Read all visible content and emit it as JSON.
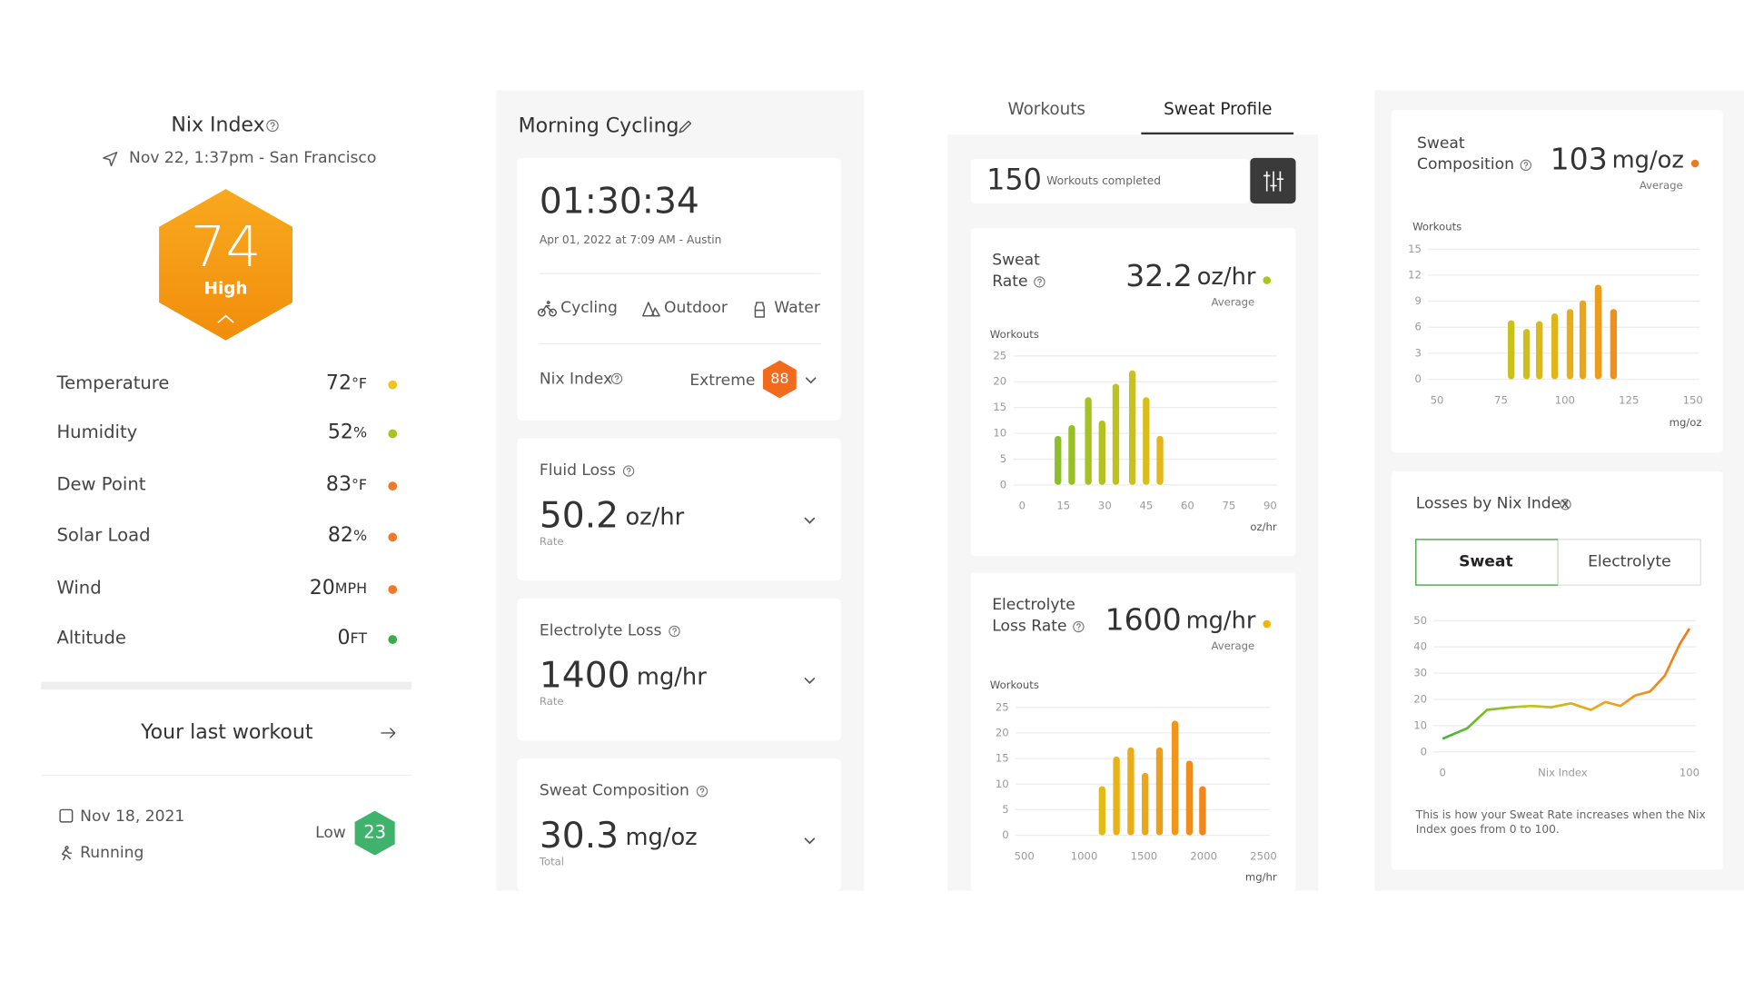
{
  "nix_panel": {
    "title": "Nix Index",
    "location": "Nov 22, 1:37pm - San Francisco",
    "index": "74",
    "level": "High",
    "conditions": [
      {
        "label": "Temperature",
        "value": "72",
        "unit": "°F",
        "dot": "#f2c31a"
      },
      {
        "label": "Humidity",
        "value": "52",
        "unit": "%",
        "dot": "#a9c41c"
      },
      {
        "label": "Dew Point",
        "value": "83",
        "unit": "°F",
        "dot": "#f07a2a"
      },
      {
        "label": "Solar Load",
        "value": "82",
        "unit": "%",
        "dot": "#f07a2a"
      },
      {
        "label": "Wind",
        "value": "20",
        "unit": "MPH",
        "dot": "#f07a2a"
      },
      {
        "label": "Altitude",
        "value": "0",
        "unit": "FT",
        "dot": "#3daa4e"
      }
    ],
    "last_workout": {
      "title": "Your last workout",
      "date": "Nov 18, 2021",
      "activity": "Running",
      "level": "Low",
      "index": "23"
    }
  },
  "workout_panel": {
    "title": "Morning Cycling",
    "duration": "01:30:34",
    "meta": "Apr 01, 2022 at 7:09 AM - Austin",
    "tags": [
      "Cycling",
      "Outdoor",
      "Water"
    ],
    "nix_label": "Nix Index",
    "nix_level": "Extreme",
    "nix_value": "88",
    "metrics": [
      {
        "label": "Fluid Loss",
        "value": "50.2",
        "unit": "oz/hr",
        "sub": "Rate"
      },
      {
        "label": "Electrolyte Loss",
        "value": "1400",
        "unit": "mg/hr",
        "sub": "Rate"
      },
      {
        "label": "Sweat Composition",
        "value": "30.3",
        "unit": "mg/oz",
        "sub": "Total"
      }
    ]
  },
  "profile_panel": {
    "tabs": [
      "Workouts",
      "Sweat Profile"
    ],
    "count": "150",
    "count_label": "Workouts completed",
    "cards": [
      {
        "label_lines": [
          "Sweat",
          "Rate"
        ],
        "value": "32.2",
        "unit": "oz/hr",
        "sub": "Average",
        "dot": "#a8c81a"
      },
      {
        "label_lines": [
          "Electrolyte",
          "Loss Rate"
        ],
        "value": "1600",
        "unit": "mg/hr",
        "sub": "Average",
        "dot": "#f5b400"
      }
    ]
  },
  "composition_panel": {
    "card": {
      "label_lines": [
        "Sweat",
        "Composition"
      ],
      "value": "103",
      "unit": "mg/oz",
      "sub": "Average",
      "dot": "#f07a1a"
    },
    "losses_title": "Losses by Nix Index",
    "toggle": [
      "Sweat",
      "Electrolyte"
    ],
    "note_lines": [
      "This is how your Sweat Rate increases when the Nix",
      "Index goes from 0 to 100."
    ]
  },
  "chart_data": [
    {
      "type": "bar",
      "y_label": "Workouts",
      "x_label": "oz/hr",
      "x": [
        13,
        18,
        24,
        29,
        34,
        40,
        45,
        50
      ],
      "values": [
        9.5,
        11.6,
        17,
        12.5,
        19.6,
        22.2,
        17,
        9.5
      ],
      "colors": [
        "#8cbf26",
        "#98c024",
        "#a6c222",
        "#b2c220",
        "#bec21e",
        "#cbc11c",
        "#d9bd1a",
        "#e4b718"
      ],
      "xlim": [
        0,
        90
      ],
      "xticks": [
        0,
        15,
        30,
        45,
        60,
        75,
        90
      ],
      "ylim": [
        0,
        25
      ],
      "yticks": [
        0,
        5,
        10,
        15,
        20,
        25
      ],
      "grid": true
    },
    {
      "type": "bar",
      "y_label": "Workouts",
      "x_label": "mg/hr",
      "x": [
        1150,
        1270,
        1390,
        1510,
        1630,
        1760,
        1880,
        1990
      ],
      "values": [
        9.6,
        15.4,
        17.2,
        12.2,
        17.2,
        22.4,
        14.6,
        9.6
      ],
      "colors": [
        "#e2bb17",
        "#e6b418",
        "#e9ad18",
        "#eca619",
        "#ee9f19",
        "#f0961a",
        "#f18d1a",
        "#f2851b"
      ],
      "xlim": [
        500,
        2500
      ],
      "xticks": [
        500,
        1000,
        1500,
        2000,
        2500
      ],
      "ylim": [
        0,
        25
      ],
      "yticks": [
        0,
        5,
        10,
        15,
        20,
        25
      ],
      "grid": true
    },
    {
      "type": "bar",
      "y_label": "Workouts",
      "x_label": "mg/oz",
      "x": [
        79,
        85,
        90,
        96,
        102,
        107,
        113,
        119
      ],
      "values": [
        6.8,
        5.8,
        6.7,
        7.6,
        8.1,
        9.1,
        10.9,
        8.1
      ],
      "colors": [
        "#c8c21a",
        "#d0bf1a",
        "#d8bb1a",
        "#dfb61a",
        "#e6ae1a",
        "#eba51a",
        "#ee9a1a",
        "#f0901a"
      ],
      "xlim": [
        50,
        150
      ],
      "xticks": [
        50,
        75,
        100,
        125,
        150
      ],
      "ylim": [
        0,
        15
      ],
      "yticks": [
        0,
        3,
        6,
        9,
        12,
        15
      ],
      "grid": true
    },
    {
      "type": "line",
      "x_label": "Nix Index",
      "x": [
        0,
        10,
        18,
        28,
        36,
        44,
        52,
        60,
        66,
        72,
        78,
        84,
        90,
        96,
        100
      ],
      "values": [
        5,
        9,
        16,
        17,
        17.5,
        17,
        18.5,
        16,
        19,
        17.5,
        21.5,
        23,
        29,
        41,
        47
      ],
      "colors": [
        "#3fb43a",
        "#b8c41c",
        "#f5a21a",
        "#f07a1a"
      ],
      "xlim": [
        0,
        100
      ],
      "xticks": [
        0,
        100
      ],
      "ylim": [
        0,
        50
      ],
      "yticks": [
        0,
        10,
        20,
        30,
        40,
        50
      ],
      "grid": true
    }
  ]
}
